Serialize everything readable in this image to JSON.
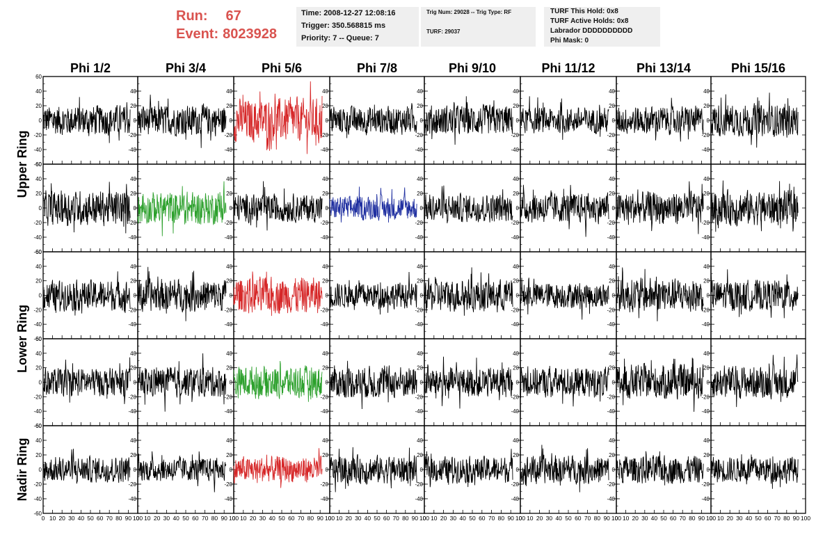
{
  "header": {
    "run_label": "Run:",
    "run_value": "67",
    "event_label": "Event:",
    "event_value": "8023928",
    "time": "Time: 2008-12-27 12:08:16",
    "trigger": "Trigger: 350.568815 ms",
    "priority": "Priority: 7 -- Queue: 7",
    "trig_num": "Trig Num: 29028 -- Trig Type: RF",
    "turf": "TURF: 29037",
    "turf_hold": "TURF This Hold: 0x8",
    "turf_active": "TURF Active Holds: 0x8",
    "labrador": "Labrador DDDDDDDDDD",
    "phi_mask": "Phi Mask: 0"
  },
  "chart_data": {
    "type": "line",
    "columns": [
      "Phi 1/2",
      "Phi 3/4",
      "Phi 5/6",
      "Phi 7/8",
      "Phi 9/10",
      "Phi 11/12",
      "Phi 13/14",
      "Phi 15/16"
    ],
    "row_groups": [
      {
        "label": "Upper Ring",
        "rows": [
          0,
          1
        ]
      },
      {
        "label": "Lower Ring",
        "rows": [
          2,
          3
        ]
      },
      {
        "label": "Nadir Ring",
        "rows": [
          4
        ]
      }
    ],
    "xlim": [
      0,
      100
    ],
    "ylim": [
      -60,
      60
    ],
    "xticks": [
      "0",
      "10",
      "20",
      "30",
      "40",
      "50",
      "60",
      "70",
      "80",
      "90",
      "100"
    ],
    "yticks": [
      "60",
      "40",
      "20",
      "0",
      "-20",
      "-40",
      "-60"
    ],
    "colors": {
      "default": "#000000",
      "red": "#d62728",
      "green": "#2ca02c",
      "blue": "#1f2fa0"
    },
    "panel_colors": [
      [
        "default",
        "default",
        "red",
        "default",
        "default",
        "default",
        "default",
        "default"
      ],
      [
        "default",
        "green",
        "default",
        "blue",
        "default",
        "default",
        "default",
        "default"
      ],
      [
        "default",
        "default",
        "red",
        "default",
        "default",
        "default",
        "default",
        "default"
      ],
      [
        "default",
        "default",
        "green",
        "default",
        "default",
        "default",
        "default",
        "default"
      ],
      [
        "default",
        "default",
        "red",
        "default",
        "default",
        "default",
        "default",
        "default"
      ]
    ],
    "panel_amplitude": [
      [
        14,
        14,
        20,
        13,
        14,
        12,
        13,
        15
      ],
      [
        16,
        15,
        13,
        11,
        13,
        14,
        15,
        16
      ],
      [
        14,
        15,
        17,
        12,
        15,
        12,
        16,
        14
      ],
      [
        13,
        14,
        15,
        15,
        14,
        14,
        16,
        15
      ],
      [
        12,
        11,
        12,
        13,
        12,
        13,
        13,
        12
      ]
    ],
    "samples_per_trace": 260,
    "trace_x_end": 92
  }
}
